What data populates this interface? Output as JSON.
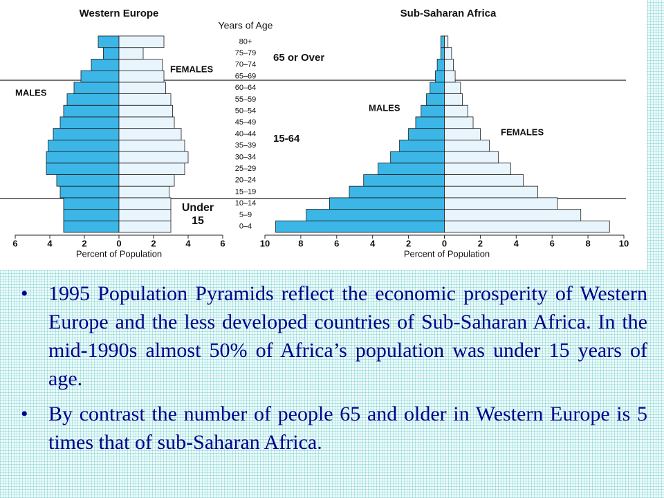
{
  "chart_data": [
    {
      "type": "bar",
      "title": "Western Europe",
      "y_label": "Years of Age",
      "x_label": "Percent of Population",
      "categories": [
        "0–4",
        "5–9",
        "10–14",
        "15–19",
        "20–24",
        "25–29",
        "30–34",
        "35–39",
        "40–44",
        "45–49",
        "50–54",
        "55–59",
        "60–64",
        "65–69",
        "70–74",
        "75–79",
        "80+"
      ],
      "series": [
        {
          "name": "MALES",
          "color": "#3cb6e6",
          "values": [
            -3.2,
            -3.2,
            -3.2,
            -3.4,
            -3.6,
            -4.2,
            -4.2,
            -4.1,
            -3.8,
            -3.4,
            -3.2,
            -3.0,
            -2.6,
            -2.2,
            -1.6,
            -0.9,
            -1.2
          ]
        },
        {
          "name": "FEMALES",
          "color": "#e9f5fc",
          "values": [
            3.0,
            3.0,
            3.0,
            2.9,
            3.2,
            3.8,
            4.0,
            3.8,
            3.6,
            3.2,
            3.1,
            3.0,
            2.7,
            2.6,
            2.5,
            1.4,
            2.6
          ]
        }
      ],
      "xlim": [
        -6,
        6
      ],
      "xticks": [
        {
          "value": -6,
          "label": "6"
        },
        {
          "value": -4,
          "label": "4"
        },
        {
          "value": -2,
          "label": "2"
        },
        0,
        2,
        4,
        6
      ],
      "annotations": [
        "65 or Over",
        "15-64",
        "Under 15"
      ]
    },
    {
      "type": "bar",
      "title": "Sub-Saharan Africa",
      "x_label": "Percent of Population",
      "series": [
        {
          "name": "MALES",
          "color": "#3cb6e6",
          "values": [
            -9.4,
            -7.7,
            -6.4,
            -5.3,
            -4.5,
            -3.7,
            -3.0,
            -2.5,
            -2.0,
            -1.6,
            -1.3,
            -1.0,
            -0.8,
            -0.5,
            -0.4,
            -0.2,
            -0.2
          ]
        },
        {
          "name": "FEMALES",
          "color": "#e9f5fc",
          "values": [
            9.2,
            7.6,
            6.3,
            5.2,
            4.4,
            3.7,
            3.0,
            2.5,
            2.0,
            1.6,
            1.3,
            1.0,
            0.9,
            0.6,
            0.5,
            0.4,
            0.2
          ]
        }
      ],
      "xlim": [
        -10,
        10
      ],
      "xticks": [
        {
          "value": -10,
          "label": "10"
        },
        {
          "value": -8,
          "label": "8"
        },
        {
          "value": -6,
          "label": "6"
        },
        {
          "value": -4,
          "label": "4"
        },
        {
          "value": -2,
          "label": "2"
        },
        0,
        2,
        4,
        6,
        8,
        10
      ]
    }
  ],
  "bullets": [
    "1995 Population Pyramids reflect the economic prosperity of Western Europe and the less developed countries of Sub-Saharan Africa.  In the mid-1990s almost 50% of Africa’s population was under 15 years of age.",
    "By contrast the number of people 65 and older in Western Europe is 5 times that of sub-Saharan Africa."
  ]
}
